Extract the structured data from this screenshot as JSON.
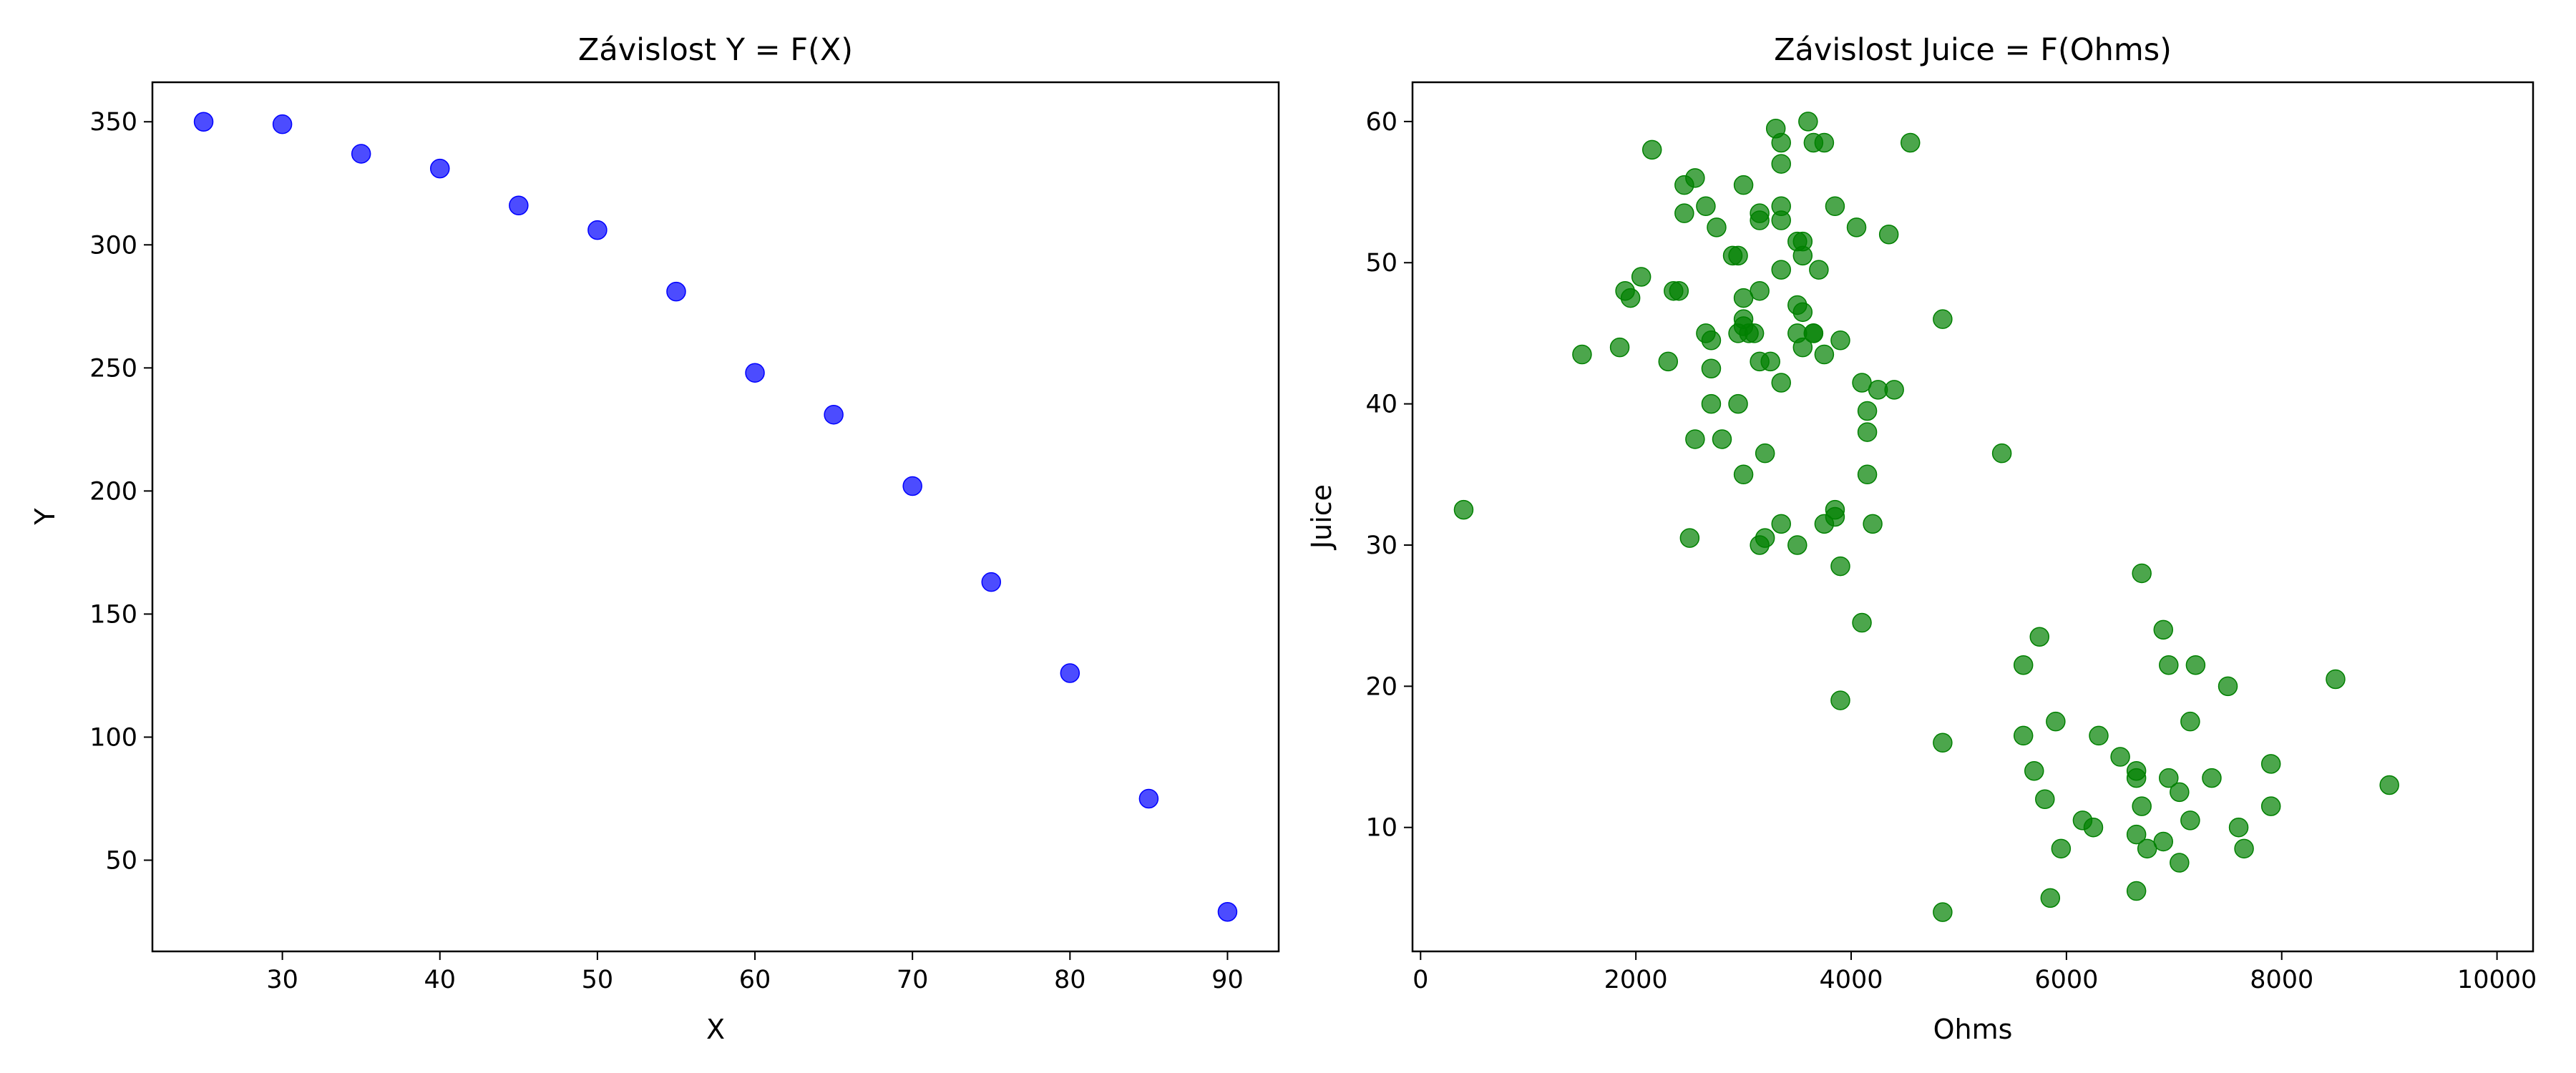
{
  "chart_data": [
    {
      "type": "scatter",
      "title": "Závislost Y = F(X)",
      "xlabel": "X",
      "ylabel": "Y",
      "xlim": [
        21.75,
        93.25
      ],
      "ylim": [
        12.95,
        366.05
      ],
      "xticks": [
        30,
        40,
        50,
        60,
        70,
        80,
        90
      ],
      "yticks": [
        50,
        100,
        150,
        200,
        250,
        300,
        350
      ],
      "grid": false,
      "color": "#0000ff",
      "series": [
        {
          "x": [
            25,
            30,
            35,
            40,
            45,
            50,
            55,
            60,
            65,
            70,
            75,
            80,
            85,
            90
          ],
          "y": [
            350,
            349,
            337,
            331,
            316,
            306,
            281,
            248,
            231,
            202,
            163,
            126,
            75,
            29
          ]
        }
      ]
    },
    {
      "type": "scatter",
      "title": "Závislost Juice = F(Ohms)",
      "xlabel": "Ohms",
      "ylabel": "Juice",
      "xlim": [
        -75,
        10335
      ],
      "ylim": [
        1.22,
        62.78
      ],
      "xticks": [
        0,
        2000,
        4000,
        6000,
        8000,
        10000
      ],
      "yticks": [
        10,
        20,
        30,
        40,
        50,
        60
      ],
      "grid": false,
      "color": "#008000",
      "series": [
        {
          "x": [
            3600,
            3300,
            4550,
            3750,
            3650,
            3350,
            3350,
            2150,
            2550,
            2450,
            3000,
            2450,
            3150,
            3350,
            3850,
            3150,
            2650,
            3350,
            2750,
            4050,
            4350,
            3500,
            3550,
            2900,
            2950,
            3550,
            3700,
            3350,
            2050,
            1900,
            2350,
            2400,
            1950,
            3000,
            3150,
            3500,
            3550,
            4850,
            3000,
            3000,
            3050,
            2650,
            2950,
            3100,
            3500,
            3650,
            3650,
            3900,
            3550,
            1850,
            1500,
            2700,
            2300,
            3150,
            3250,
            3750,
            2700,
            4100,
            4250,
            4400,
            3350,
            2700,
            2950,
            4150,
            2550,
            2800,
            4150,
            3200,
            5400,
            3000,
            4150,
            3850,
            3850,
            400,
            3750,
            3350,
            4200,
            2500,
            3150,
            3200,
            3500,
            3900,
            4100,
            3900,
            4850,
            6700,
            6900,
            5750,
            5600,
            6950,
            7200,
            7500,
            8500,
            7150,
            5900,
            5600,
            6300,
            6500,
            5700,
            6650,
            6650,
            6950,
            7350,
            5800,
            7050,
            6700,
            7900,
            9000,
            7900,
            6150,
            6250,
            7150,
            7600,
            6650,
            6900,
            5950,
            6750,
            7650,
            7050,
            6650,
            5850,
            4850
          ],
          "y": [
            60,
            59.5,
            58.5,
            58.5,
            58.5,
            58.5,
            57,
            58,
            56,
            55.5,
            55.5,
            53.5,
            53.5,
            54,
            54,
            53,
            54,
            53,
            52.5,
            52.5,
            52,
            51.5,
            51.5,
            50.5,
            50.5,
            50.5,
            49.5,
            49.5,
            49,
            48,
            48,
            48,
            47.5,
            47.5,
            48,
            47,
            46.5,
            46,
            46,
            45.5,
            45,
            45,
            45,
            45,
            45,
            45,
            45,
            44.5,
            44,
            44,
            43.5,
            44.5,
            43,
            43,
            43,
            43.5,
            42.5,
            41.5,
            41,
            41,
            41.5,
            40,
            40,
            39.5,
            37.5,
            37.5,
            38,
            36.5,
            36.5,
            35,
            35,
            32.5,
            32,
            32.5,
            31.5,
            31.5,
            31.5,
            30.5,
            30,
            30.5,
            30,
            28.5,
            24.5,
            19,
            16,
            28,
            24,
            23.5,
            21.5,
            21.5,
            21.5,
            20,
            20.5,
            17.5,
            17.5,
            16.5,
            16.5,
            15,
            14,
            14,
            13.5,
            13.5,
            13.5,
            12,
            12.5,
            11.5,
            14.5,
            13,
            11.5,
            10.5,
            10,
            10.5,
            10,
            9.5,
            9,
            8.5,
            8.5,
            8.5,
            7.5,
            5.5,
            5,
            4
          ]
        }
      ]
    }
  ]
}
